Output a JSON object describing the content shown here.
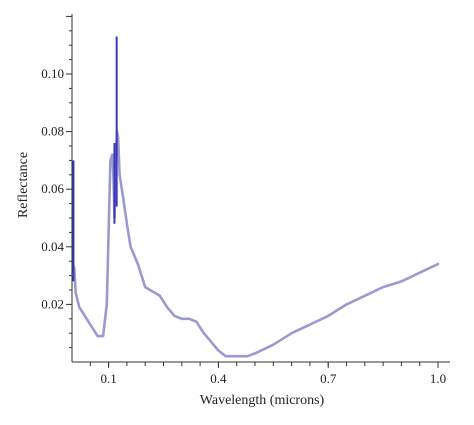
{
  "chart_data": {
    "type": "line",
    "title": "",
    "xlabel": "Wavelength (microns)",
    "ylabel": "Reflectance",
    "xlim": [
      0.0,
      1.05
    ],
    "ylim": [
      0.0,
      0.12
    ],
    "xticks": [
      0.1,
      0.4,
      0.7,
      1.0
    ],
    "xtick_labels": [
      "0.1",
      "0.4",
      "0.7",
      "1.0"
    ],
    "yticks": [
      0.02,
      0.04,
      0.06,
      0.08,
      0.1
    ],
    "ytick_labels": [
      "0.02",
      "0.04",
      "0.06",
      "0.08",
      "0.10"
    ],
    "grid": false,
    "legend": "none",
    "colors": {
      "line": "#9a9ad0",
      "spike": "#3a3ab8",
      "axis": "#333333"
    },
    "series": [
      {
        "x": [
          0.004,
          0.006,
          0.01,
          0.02,
          0.03,
          0.05,
          0.07,
          0.085,
          0.095,
          0.1,
          0.105,
          0.11,
          0.113,
          0.116,
          0.12,
          0.123,
          0.126,
          0.13,
          0.14,
          0.15,
          0.16,
          0.18,
          0.2,
          0.24,
          0.26,
          0.28,
          0.3,
          0.32,
          0.34,
          0.36,
          0.38,
          0.4,
          0.42,
          0.44,
          0.46,
          0.48,
          0.5,
          0.55,
          0.6,
          0.65,
          0.7,
          0.75,
          0.8,
          0.85,
          0.9,
          0.95,
          1.0
        ],
        "y": [
          0.03,
          0.033,
          0.024,
          0.019,
          0.017,
          0.013,
          0.009,
          0.009,
          0.02,
          0.045,
          0.07,
          0.072,
          0.065,
          0.05,
          0.07,
          0.08,
          0.078,
          0.065,
          0.057,
          0.048,
          0.04,
          0.034,
          0.026,
          0.023,
          0.019,
          0.016,
          0.015,
          0.015,
          0.014,
          0.01,
          0.007,
          0.004,
          0.002,
          0.002,
          0.002,
          0.002,
          0.003,
          0.006,
          0.01,
          0.013,
          0.016,
          0.02,
          0.023,
          0.026,
          0.028,
          0.031,
          0.034
        ]
      }
    ],
    "spikes": [
      {
        "x": 0.004,
        "ymin": 0.028,
        "ymax": 0.07
      },
      {
        "x": 0.116,
        "ymin": 0.048,
        "ymax": 0.076
      },
      {
        "x": 0.122,
        "ymin": 0.054,
        "ymax": 0.113
      }
    ]
  }
}
